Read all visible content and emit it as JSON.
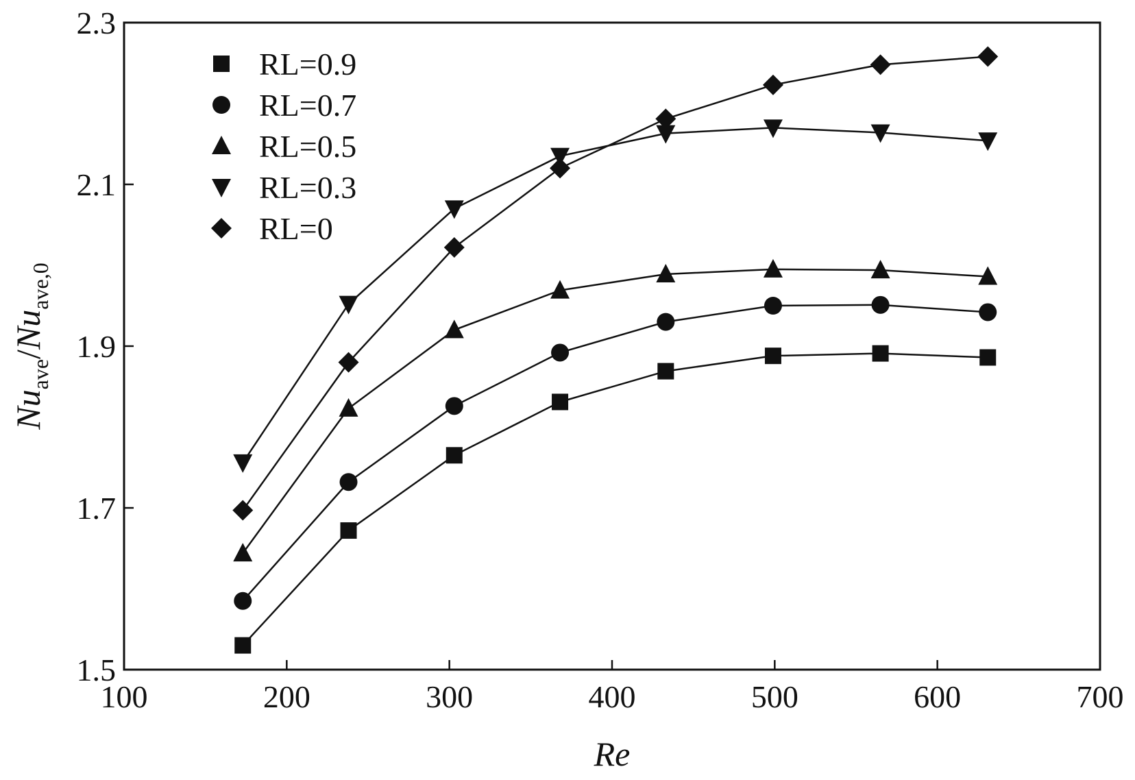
{
  "chart_data": {
    "type": "line",
    "x_axis": {
      "label": "Re",
      "lim": [
        100,
        700
      ],
      "ticks": [
        100,
        200,
        300,
        400,
        500,
        600,
        700
      ],
      "tick_labels": [
        "100",
        "200",
        "300",
        "400",
        "500",
        "600",
        "700"
      ]
    },
    "y_axis": {
      "label_parts": {
        "part1_main": "Nu",
        "part1_sub": "ave",
        "slash": "/",
        "part2_main": "Nu",
        "part2_sub": "ave,0"
      },
      "lim": [
        1.5,
        2.3
      ],
      "ticks": [
        1.5,
        1.7,
        1.9,
        2.1,
        2.3
      ],
      "tick_labels": [
        "1.5",
        "1.7",
        "1.9",
        "2.1",
        "2.3"
      ]
    },
    "x": [
      173,
      238,
      303,
      368,
      433,
      499,
      565,
      631
    ],
    "series": [
      {
        "name": "RL=0.9",
        "marker": "square",
        "values": [
          1.53,
          1.672,
          1.765,
          1.831,
          1.869,
          1.888,
          1.891,
          1.886
        ]
      },
      {
        "name": "RL=0.7",
        "marker": "circle",
        "values": [
          1.585,
          1.732,
          1.826,
          1.892,
          1.93,
          1.95,
          1.951,
          1.942
        ]
      },
      {
        "name": "RL=0.5",
        "marker": "triangle-up",
        "values": [
          1.644,
          1.823,
          1.92,
          1.969,
          1.989,
          1.995,
          1.994,
          1.986
        ]
      },
      {
        "name": "RL=0.3",
        "marker": "triangle-down",
        "values": [
          1.756,
          1.952,
          2.07,
          2.135,
          2.163,
          2.17,
          2.164,
          2.154
        ]
      },
      {
        "name": "RL=0",
        "marker": "diamond",
        "values": [
          1.697,
          1.88,
          2.022,
          2.12,
          2.181,
          2.223,
          2.248,
          2.258
        ]
      }
    ],
    "legend_position": "top-left",
    "grid": false
  }
}
